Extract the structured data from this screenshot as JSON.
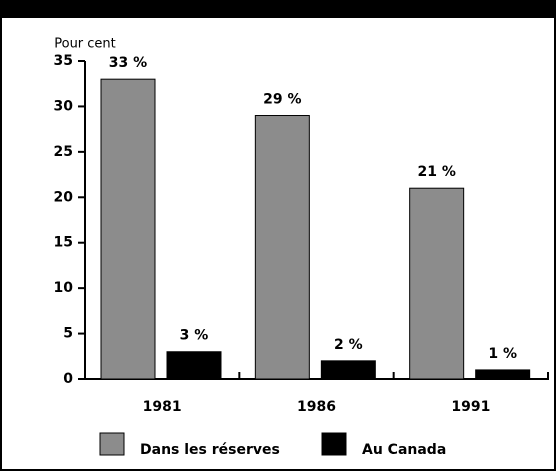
{
  "chart_data": {
    "type": "bar",
    "y_label": "Pour cent",
    "categories": [
      "1981",
      "1986",
      "1991"
    ],
    "series": [
      {
        "name": "Dans les réserves",
        "color": "#8c8c8c",
        "values": [
          33,
          29,
          21
        ],
        "value_labels": [
          "33 %",
          "29 %",
          "21 %"
        ]
      },
      {
        "name": "Au Canada",
        "color": "#000000",
        "values": [
          3,
          2,
          1
        ],
        "value_labels": [
          "3 %",
          "2 %",
          "1 %"
        ]
      }
    ],
    "ylim": [
      0,
      35
    ],
    "yticks": [
      0,
      5,
      10,
      15,
      20,
      25,
      30,
      35
    ],
    "legend": "bottom"
  }
}
